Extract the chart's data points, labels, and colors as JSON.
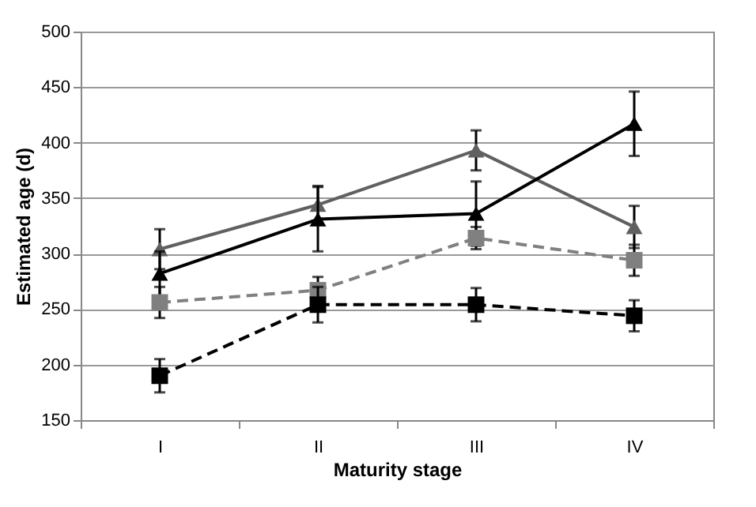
{
  "chart_data": {
    "type": "line",
    "xlabel": "Maturity stage",
    "ylabel": "Estimated age (d)",
    "categories": [
      "I",
      "II",
      "III",
      "IV"
    ],
    "ylim": [
      150,
      500
    ],
    "yticks": [
      150,
      200,
      250,
      300,
      350,
      400,
      450,
      500
    ],
    "grid": "y",
    "series": [
      {
        "color": "#606060",
        "marker": "triangle",
        "line_style": "solid",
        "values": [
          304,
          344,
          393,
          324
        ],
        "errors": [
          18,
          17,
          18,
          19
        ]
      },
      {
        "color": "#000000",
        "marker": "triangle",
        "line_style": "solid",
        "values": [
          282,
          331,
          336,
          417
        ],
        "errors": [
          20,
          29,
          29,
          29
        ]
      },
      {
        "color": "#808080",
        "marker": "square",
        "line_style": "dashed",
        "values": [
          256,
          267,
          314,
          294
        ],
        "errors": [
          14,
          12,
          10,
          14
        ]
      },
      {
        "color": "#000000",
        "marker": "square",
        "line_style": "dashed",
        "values": [
          190,
          254,
          254,
          244
        ],
        "errors": [
          15,
          16,
          15,
          14
        ]
      }
    ]
  }
}
